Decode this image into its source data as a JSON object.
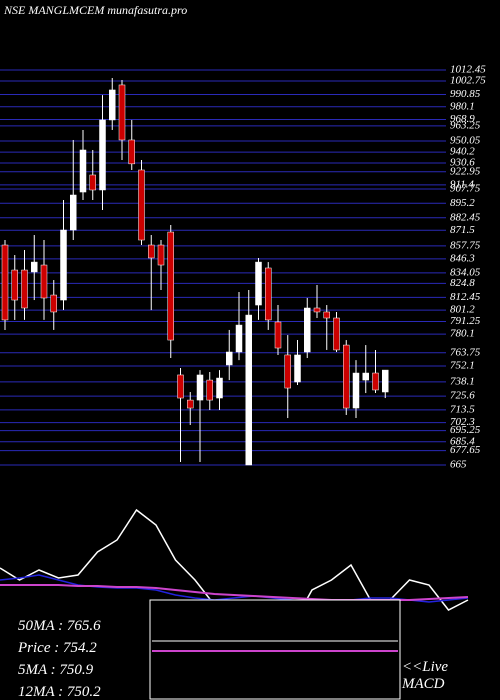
{
  "chart_data": [
    {
      "type": "candlestick",
      "title": "NSE MANGLMCEM munafasutra.pro",
      "ylim": [
        665,
        1012.45
      ],
      "yticks": [
        1012.45,
        1002.75,
        990.85,
        980.1,
        968.9,
        963.25,
        950.05,
        940.2,
        930.6,
        922.95,
        911.4,
        907.75,
        895.2,
        882.45,
        871.5,
        857.75,
        846.3,
        834.05,
        824.8,
        812.45,
        801.2,
        791.25,
        780.1,
        763.75,
        752.1,
        738.1,
        725.6,
        713.5,
        702.3,
        695.25,
        685.4,
        677.65,
        665
      ],
      "grid": true,
      "grid_color": "#2a2ab8",
      "up_color": "#ffffff",
      "down_color": "#cc0000",
      "open": [
        858.5,
        836.5,
        836.5,
        834.8,
        840.9,
        814.5,
        810.1,
        871.7,
        905.1,
        920.1,
        906.9,
        968.5,
        999.3,
        950.9,
        924.5,
        858.5,
        858.5,
        869.9,
        744.2,
        722.1,
        722.1,
        739.7,
        723.9,
        753.0,
        764.4,
        665,
        805.7,
        838.3,
        790.8,
        761.8,
        738.0,
        764.4,
        803.1,
        799.6,
        794.3,
        770.5,
        715.1,
        739.7,
        745.9,
        729.2
      ],
      "high": [
        862.9,
        849.7,
        854.1,
        867.3,
        862.9,
        827.7,
        898.1,
        950.9,
        959.7,
        942.1,
        990.4,
        1005.4,
        1003.6,
        968.5,
        933.3,
        867.3,
        862.9,
        876.1,
        750.3,
        729.2,
        748.5,
        746.8,
        748.5,
        783.8,
        817.2,
        818.9,
        847.1,
        843.5,
        805.7,
        779.3,
        774.9,
        811.9,
        823.3,
        805.7,
        799.6,
        774.9,
        757.3,
        770.5,
        766.2,
        748.5
      ],
      "low": [
        783.8,
        792.6,
        792.6,
        810.1,
        792.6,
        783.8,
        801.3,
        862.9,
        898.1,
        898.1,
        889.3,
        959.7,
        933.3,
        924.5,
        858.5,
        801.3,
        818.9,
        759.1,
        667.6,
        700.2,
        667.6,
        713.4,
        713.4,
        739.7,
        757.3,
        665,
        792.6,
        783.8,
        761.8,
        706.3,
        735.4,
        759.1,
        794.3,
        766.2,
        764.4,
        709.0,
        706.3,
        728.3,
        728.3,
        723.9
      ],
      "close": [
        792.6,
        810.1,
        803.1,
        843.5,
        811.9,
        799.6,
        871.7,
        902.5,
        942.1,
        906.9,
        968.5,
        994.9,
        950.9,
        929.9,
        862.9,
        847.1,
        840.9,
        774.9,
        723.9,
        715.1,
        744.2,
        722.1,
        741.5,
        764.4,
        788.1,
        796.9,
        843.5,
        792.6,
        767.9,
        732.7,
        761.8,
        803.1,
        799.6,
        794.3,
        766.2,
        715.1,
        745.9,
        745.9,
        731.0,
        748.5
      ]
    },
    {
      "type": "line",
      "ylim": [
        -60,
        100
      ],
      "series": [
        {
          "color": "#ffffff",
          "values": [
            32,
            20,
            30,
            22,
            25,
            48,
            60,
            90,
            75,
            40,
            20,
            -5,
            -25,
            -40,
            -50,
            -25,
            10,
            20,
            35,
            0,
            0,
            20,
            15,
            -10,
            0
          ]
        },
        {
          "color": "#2222dd",
          "values": [
            20,
            22,
            25,
            20,
            15,
            13,
            12,
            12,
            10,
            5,
            2,
            0,
            2,
            4,
            2,
            0,
            -2,
            0,
            0,
            2,
            2,
            0,
            -2,
            0,
            2
          ]
        },
        {
          "color": "#cc44cc",
          "values": [
            15,
            15,
            15,
            15,
            14,
            14,
            13,
            13,
            12,
            10,
            8,
            6,
            5,
            4,
            3,
            2,
            1,
            0,
            0,
            0,
            0,
            0,
            1,
            2,
            3
          ]
        }
      ],
      "info_labels": [
        "50MA : 765.6",
        "Price  : 754.2",
        "5MA : 750.9",
        "12MA : 750.2"
      ],
      "live_label": "<<Live",
      "macd_label": "MACD"
    }
  ]
}
